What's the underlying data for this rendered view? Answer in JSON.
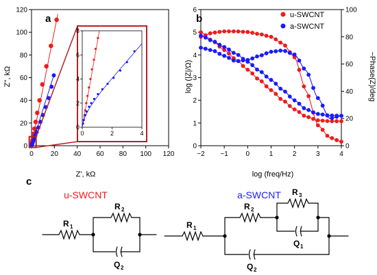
{
  "panel_labels": {
    "a": "a",
    "b": "b",
    "c": "c"
  },
  "colors": {
    "red": "#ee1c1c",
    "blue": "#1a1aff",
    "frame": "#b22222"
  },
  "legend": {
    "u": "u-SWCNT",
    "a": "a-SWCNT"
  },
  "circuit": {
    "u_title": "u-SWCNT",
    "a_title": "a-SWCNT",
    "u_labels": {
      "r1": "R",
      "r1s": "1",
      "r2": "R",
      "r2s": "2",
      "q2": "Q",
      "q2s": "2"
    },
    "a_labels": {
      "r1": "R",
      "r1s": "1",
      "r2": "R",
      "r2s": "2",
      "r3": "R",
      "r3s": "3",
      "q1": "Q",
      "q1s": "1",
      "q2": "Q",
      "q2s": "2"
    }
  },
  "chart_data": [
    {
      "type": "scatter",
      "panel": "a",
      "xlabel": "Z', kΩ",
      "ylabel": "Z'', kΩ",
      "xlim": [
        0,
        120
      ],
      "ylim": [
        0,
        120
      ],
      "xticks": [
        "0",
        "20",
        "40",
        "60",
        "80",
        "100",
        "120"
      ],
      "yticks": [
        "0",
        "20",
        "40",
        "60",
        "80",
        "100",
        "120"
      ],
      "series": [
        {
          "name": "u-SWCNT",
          "color": "#ee1c1c",
          "x": [
            0.1,
            0.2,
            0.4,
            0.6,
            0.9,
            1.3,
            1.8,
            2.6,
            3.6,
            5.0,
            7.0,
            9.5,
            13.0,
            17.0,
            22.0
          ],
          "y": [
            0.5,
            1,
            2,
            3.5,
            5,
            7.5,
            10.5,
            15,
            21,
            29,
            40,
            54,
            70,
            88,
            111
          ]
        },
        {
          "name": "a-SWCNT",
          "color": "#1a1aff",
          "x": [
            0.3,
            0.8,
            1.5,
            2.3,
            3.3,
            4.5,
            6,
            7.8,
            10,
            12.5,
            15,
            17.5,
            19.5
          ],
          "y": [
            0.7,
            2,
            4,
            6,
            9,
            12,
            16,
            21,
            27,
            34,
            42,
            52,
            62
          ]
        }
      ],
      "inset": {
        "xlim": [
          0,
          4
        ],
        "ylim": [
          0,
          8
        ],
        "xticks": [
          "0",
          "2",
          "4"
        ],
        "yticks": [
          "0",
          "2",
          "4",
          "6",
          "8"
        ],
        "series": [
          {
            "name": "u-SWCNT",
            "x": [
              0.05,
              0.1,
              0.15,
              0.2,
              0.27,
              0.35,
              0.45,
              0.55,
              0.65,
              0.78,
              0.9,
              1.05
            ],
            "y": [
              0.3,
              0.6,
              1.0,
              1.4,
              2.0,
              2.6,
              3.3,
              4.0,
              4.8,
              5.6,
              6.5,
              7.4
            ]
          },
          {
            "name": "a-SWCNT",
            "x": [
              0.05,
              0.1,
              0.2,
              0.3,
              0.45,
              0.6,
              0.8,
              1.05,
              1.35,
              1.7,
              2.1,
              2.55,
              3.0,
              3.5
            ],
            "y": [
              0.3,
              0.6,
              1.0,
              1.3,
              1.7,
              2.0,
              2.35,
              2.75,
              3.15,
              3.6,
              4.1,
              4.7,
              5.4,
              6.3
            ]
          }
        ]
      }
    },
    {
      "type": "scatter",
      "panel": "b",
      "xlabel": "log (freq/Hz)",
      "ylabel": "log (|Z|/Ω)",
      "y2label": "−Phase(Z)/deg",
      "xlim": [
        -2,
        4
      ],
      "ylim": [
        0,
        6
      ],
      "y2lim": [
        0,
        100
      ],
      "xticks": [
        "−2",
        "−1",
        "0",
        "1",
        "2",
        "3",
        "4"
      ],
      "yticks": [
        "0",
        "1",
        "2",
        "3",
        "4",
        "5",
        "6"
      ],
      "y2ticks": [
        "0",
        "20",
        "40",
        "60",
        "80",
        "100"
      ],
      "legend_position": "top-right",
      "series": [
        {
          "name": "u-SWCNT |Z|",
          "color": "#ee1c1c",
          "axis": "left",
          "x": [
            -2,
            -1.5,
            -1,
            -0.5,
            0,
            0.5,
            1,
            1.5,
            2,
            2.5,
            3,
            3.5,
            4
          ],
          "y": [
            5.0,
            4.62,
            4.22,
            3.8,
            3.35,
            2.9,
            2.45,
            2.0,
            1.6,
            1.28,
            1.12,
            1.08,
            1.08
          ]
        },
        {
          "name": "u-SWCNT phase",
          "color": "#ee1c1c",
          "axis": "right",
          "x": [
            -2,
            -1.5,
            -1,
            -0.5,
            0,
            0.5,
            1,
            1.5,
            2,
            2.5,
            3,
            3.5,
            4
          ],
          "y": [
            80,
            83,
            84,
            84,
            83.5,
            82,
            80,
            75,
            65,
            40,
            15,
            6,
            3
          ]
        },
        {
          "name": "a-SWCNT |Z|",
          "color": "#1a1aff",
          "axis": "left",
          "x": [
            -2,
            -1.5,
            -1,
            -0.5,
            0,
            0.5,
            1,
            1.5,
            2,
            2.5,
            3,
            3.5,
            4
          ],
          "y": [
            4.85,
            4.62,
            4.35,
            4.05,
            3.7,
            3.3,
            2.9,
            2.45,
            2.0,
            1.6,
            1.4,
            1.33,
            1.32
          ]
        },
        {
          "name": "a-SWCNT phase",
          "color": "#1a1aff",
          "axis": "right",
          "x": [
            -2,
            -1.5,
            -1,
            -0.5,
            0,
            0.5,
            1,
            1.5,
            2,
            2.5,
            3,
            3.5,
            4
          ],
          "y": [
            72,
            70,
            66,
            62,
            63,
            66,
            69,
            70,
            67,
            55,
            35,
            20,
            22
          ]
        }
      ]
    }
  ]
}
